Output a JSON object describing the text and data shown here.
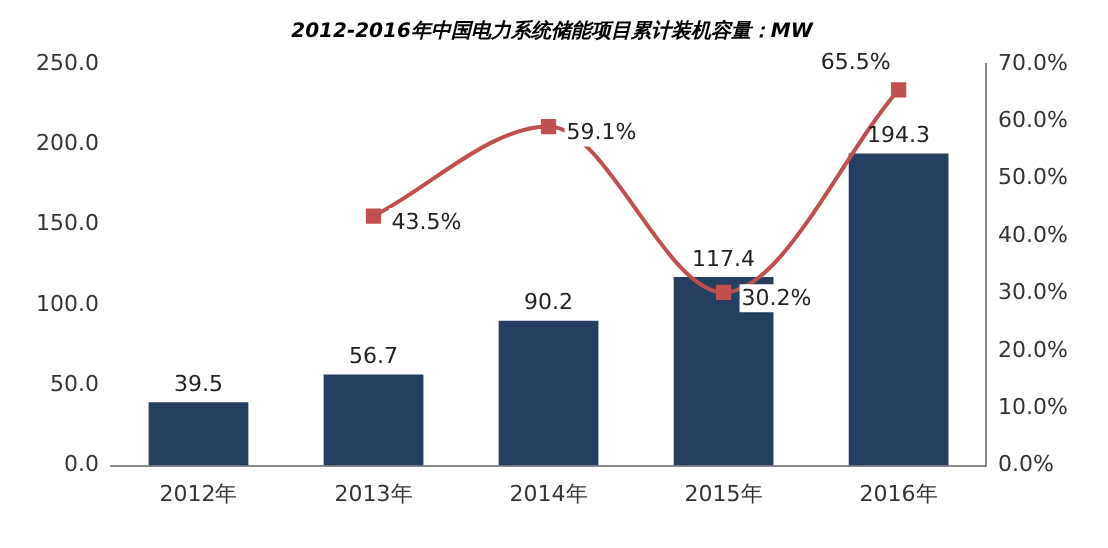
{
  "chart_data": {
    "type": "bar",
    "title": "2012-2016年中国电力系统储能项目累计装机容量：MW",
    "categories": [
      "2012年",
      "2013年",
      "2014年",
      "2015年",
      "2016年"
    ],
    "series": [
      {
        "color": "#243f60",
        "values": [
          39.5,
          56.7,
          90.2,
          117.4,
          194.3
        ],
        "value_labels": [
          "39.5",
          "56.7",
          "90.2",
          "117.4",
          "194.3"
        ]
      },
      {
        "type": "line",
        "axis": "y2",
        "color": "#c0504d",
        "values": [
          null,
          43.5,
          59.1,
          30.2,
          65.5
        ],
        "value_labels": [
          null,
          "43.5%",
          "59.1%",
          "30.2%",
          "65.5%"
        ]
      }
    ],
    "ylim": [
      0,
      250
    ],
    "yticks": [
      {
        "value": 0,
        "label": "0.0"
      },
      {
        "value": 50,
        "label": "50.0"
      },
      {
        "value": 100,
        "label": "100.0"
      },
      {
        "value": 150,
        "label": "150.0"
      },
      {
        "value": 200,
        "label": "200.0"
      },
      {
        "value": 250,
        "label": "250.0"
      }
    ],
    "y2lim": [
      0,
      70
    ],
    "y2ticks": [
      {
        "value": 0,
        "label": "0.0%"
      },
      {
        "value": 10,
        "label": "10.0%"
      },
      {
        "value": 20,
        "label": "20.0%"
      },
      {
        "value": 30,
        "label": "30.0%"
      },
      {
        "value": 40,
        "label": "40.0%"
      },
      {
        "value": 50,
        "label": "50.0%"
      },
      {
        "value": 60,
        "label": "60.0%"
      },
      {
        "value": 70,
        "label": "70.0%"
      }
    ],
    "marker": "square",
    "legend": false
  }
}
